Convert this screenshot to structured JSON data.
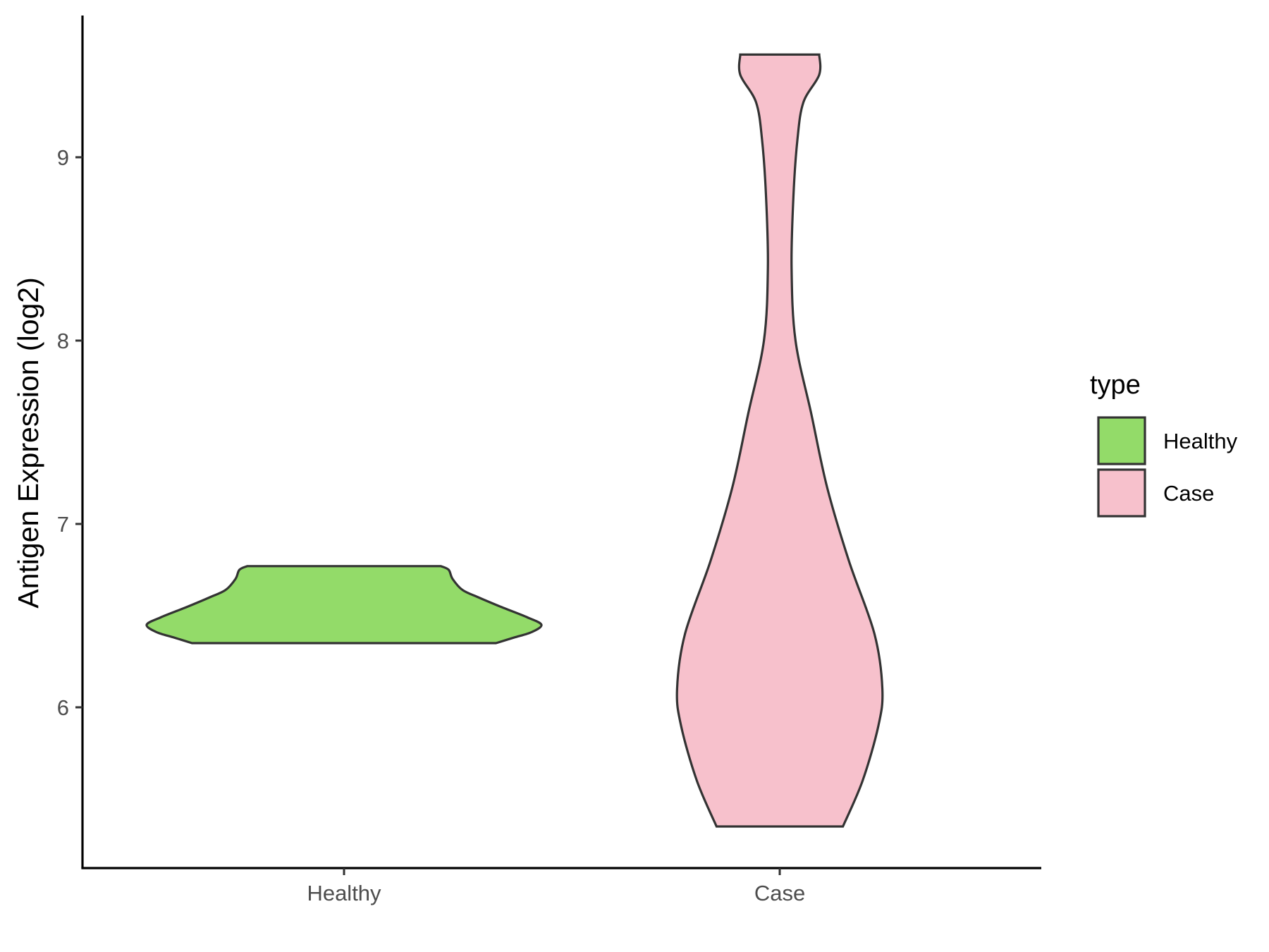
{
  "chart_data": {
    "type": "violin",
    "title": "",
    "xlabel": "",
    "ylabel": "Antigen Expression (log2)",
    "ylim": [
      5.1,
      9.75
    ],
    "y_ticks": [
      6,
      7,
      8,
      9
    ],
    "categories": [
      "Healthy",
      "Case"
    ],
    "grid": false,
    "legend": {
      "title": "type",
      "position": "right",
      "entries": [
        {
          "label": "Healthy",
          "color": "#93db69"
        },
        {
          "label": "Case",
          "color": "#f7c1cc"
        }
      ]
    },
    "series": [
      {
        "name": "Healthy",
        "color": "#93db69",
        "min": 6.35,
        "max": 6.77,
        "density": [
          [
            6.35,
            0.77
          ],
          [
            6.38,
            0.86
          ],
          [
            6.41,
            0.95
          ],
          [
            6.45,
            1.0
          ],
          [
            6.49,
            0.93
          ],
          [
            6.55,
            0.79
          ],
          [
            6.6,
            0.68
          ],
          [
            6.64,
            0.6
          ],
          [
            6.7,
            0.55
          ],
          [
            6.75,
            0.53
          ],
          [
            6.77,
            0.49
          ]
        ]
      },
      {
        "name": "Case",
        "color": "#f7c1cc",
        "min": 5.35,
        "max": 9.56,
        "density": [
          [
            5.35,
            0.32
          ],
          [
            5.6,
            0.42
          ],
          [
            5.9,
            0.5
          ],
          [
            6.1,
            0.52
          ],
          [
            6.4,
            0.48
          ],
          [
            6.8,
            0.35
          ],
          [
            7.2,
            0.24
          ],
          [
            7.6,
            0.16
          ],
          [
            8.0,
            0.08
          ],
          [
            8.4,
            0.06
          ],
          [
            8.8,
            0.07
          ],
          [
            9.1,
            0.09
          ],
          [
            9.3,
            0.12
          ],
          [
            9.45,
            0.2
          ],
          [
            9.56,
            0.2
          ]
        ]
      }
    ]
  }
}
